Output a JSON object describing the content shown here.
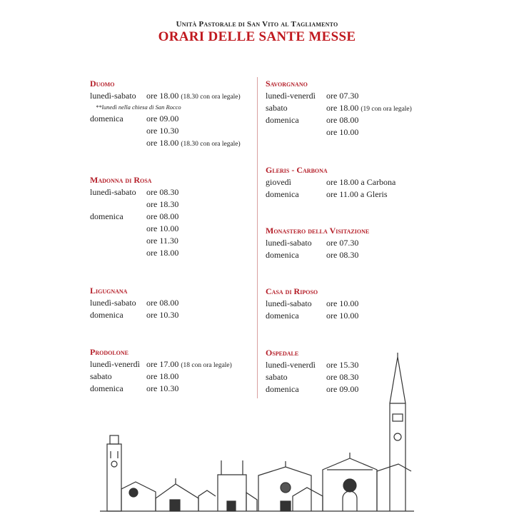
{
  "header": {
    "supertitle": "Unità Pastorale di San Vito al Tagliamento",
    "title": "ORARI DELLE SANTE MESSE"
  },
  "colors": {
    "accent": "#c0181e",
    "divider": "#d9a0a0"
  },
  "left_column": [
    {
      "name": "Duomo",
      "rows": [
        {
          "day": "lunedì-sabato",
          "time": "ore 18.00",
          "extra": "(18.30 con ora legale)"
        },
        {
          "note": "**lunedì nella chiesa di San Rocco"
        },
        {
          "day": "domenica",
          "time": "ore 09.00"
        },
        {
          "day": "",
          "time": "ore 10.30"
        },
        {
          "day": "",
          "time": "ore 18.00",
          "extra": "(18.30 con ora legale)"
        }
      ]
    },
    {
      "name": "Madonna di Rosa",
      "rows": [
        {
          "day": "lunedì-sabato",
          "time": "ore 08.30"
        },
        {
          "day": "",
          "time": "ore 18.30"
        },
        {
          "day": "domenica",
          "time": "ore 08.00"
        },
        {
          "day": "",
          "time": "ore 10.00"
        },
        {
          "day": "",
          "time": "ore 11.30"
        },
        {
          "day": "",
          "time": "ore 18.00"
        }
      ]
    },
    {
      "name": "Ligugnana",
      "rows": [
        {
          "day": "lunedì-sabato",
          "time": "ore 08.00"
        },
        {
          "day": "domenica",
          "time": "ore 10.30"
        }
      ]
    },
    {
      "name": "Prodolone",
      "rows": [
        {
          "day": "lunedì-venerdì",
          "time": "ore 17.00",
          "extra": "(18 con ora legale)"
        },
        {
          "day": "sabato",
          "time": "ore 18.00"
        },
        {
          "day": "domenica",
          "time": "ore 10.30"
        }
      ]
    }
  ],
  "right_column": [
    {
      "name": "Savorgnano",
      "rows": [
        {
          "day": "lunedì-venerdì",
          "time": "ore 07.30"
        },
        {
          "day": "sabato",
          "time": "ore 18.00",
          "extra": "(19 con ora legale)"
        },
        {
          "day": "domenica",
          "time": "ore 08.00"
        },
        {
          "day": "",
          "time": "ore 10.00"
        }
      ]
    },
    {
      "name": "Gleris - Carbona",
      "rows": [
        {
          "day": "giovedì",
          "time": "ore 18.00 a Carbona"
        },
        {
          "day": "domenica",
          "time": "ore 11.00 a Gleris"
        }
      ]
    },
    {
      "name": "Monastero della Visitazione",
      "rows": [
        {
          "day": "lunedì-sabato",
          "time": "ore 07.30"
        },
        {
          "day": "domenica",
          "time": "ore 08.30"
        }
      ]
    },
    {
      "name": "Casa di Riposo",
      "rows": [
        {
          "day": "lunedì-sabato",
          "time": "ore 10.00"
        },
        {
          "day": "domenica",
          "time": "ore 10.00"
        }
      ]
    },
    {
      "name": "Ospedale",
      "rows": [
        {
          "day": "lunedì-venerdì",
          "time": "ore 15.30"
        },
        {
          "day": "sabato",
          "time": "ore 08.30"
        },
        {
          "day": "domenica",
          "time": "ore 09.00"
        }
      ]
    }
  ]
}
